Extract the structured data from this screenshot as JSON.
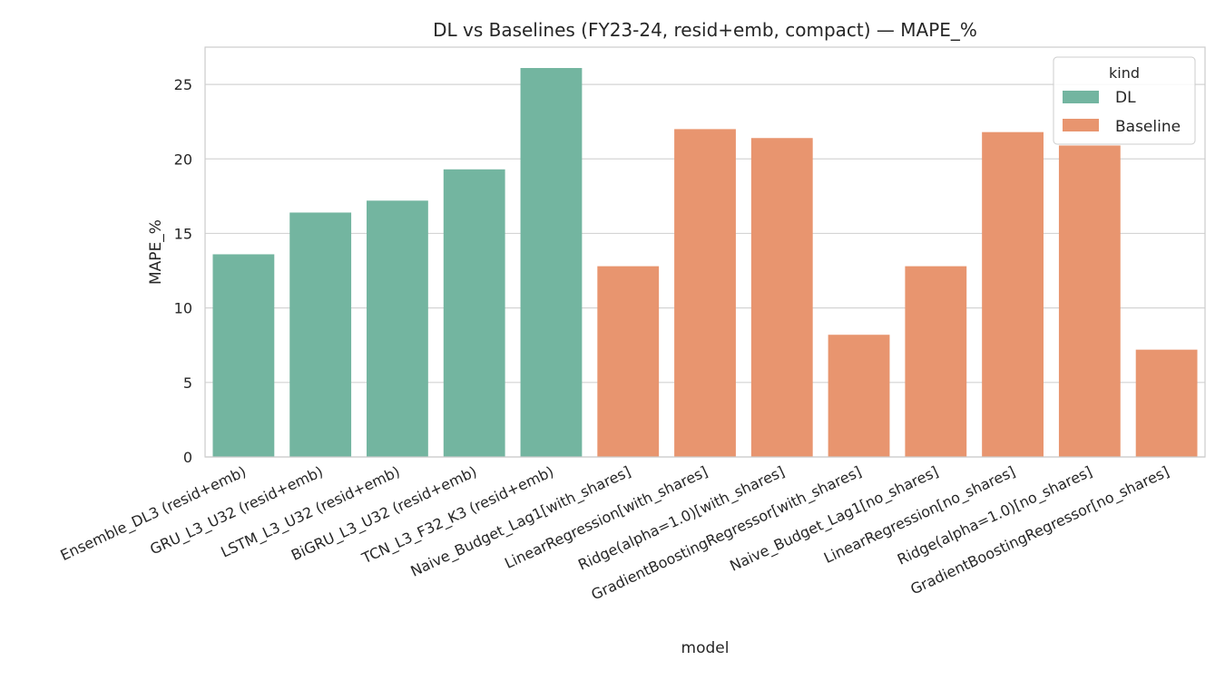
{
  "chart_data": {
    "type": "bar",
    "title": "DL vs Baselines (FY23-24, resid+emb, compact) — MAPE_%",
    "xlabel": "model",
    "ylabel": "MAPE_%",
    "ylim": [
      0,
      27.5
    ],
    "yticks": [
      0,
      5,
      10,
      15,
      20,
      25
    ],
    "grid": true,
    "legend": {
      "title": "kind",
      "placement": "top-right"
    },
    "categories": [
      "Ensemble_DL3 (resid+emb)",
      "GRU_L3_U32 (resid+emb)",
      "LSTM_L3_U32 (resid+emb)",
      "BiGRU_L3_U32 (resid+emb)",
      "TCN_L3_F32_K3 (resid+emb)",
      "Naive_Budget_Lag1[with_shares]",
      "LinearRegression[with_shares]",
      "Ridge(alpha=1.0)[with_shares]",
      "GradientBoostingRegressor[with_shares]",
      "Naive_Budget_Lag1[no_shares]",
      "LinearRegression[no_shares]",
      "Ridge(alpha=1.0)[no_shares]",
      "GradientBoostingRegressor[no_shares]"
    ],
    "values": [
      13.6,
      16.4,
      17.2,
      19.3,
      26.1,
      12.8,
      22.0,
      21.4,
      8.2,
      12.8,
      21.8,
      20.9,
      7.2
    ],
    "kind": [
      "DL",
      "DL",
      "DL",
      "DL",
      "DL",
      "Baseline",
      "Baseline",
      "Baseline",
      "Baseline",
      "Baseline",
      "Baseline",
      "Baseline",
      "Baseline"
    ],
    "series": [
      {
        "name": "DL",
        "color": "#73b5a0"
      },
      {
        "name": "Baseline",
        "color": "#e8956f"
      }
    ]
  }
}
